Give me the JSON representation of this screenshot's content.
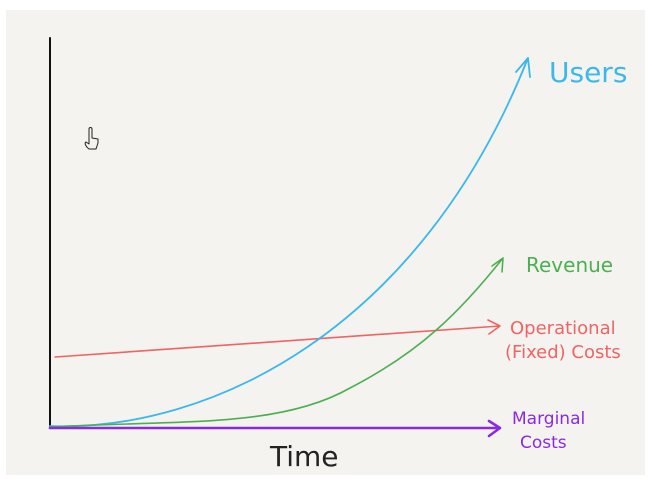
{
  "labels": {
    "users": "Users",
    "revenue": "Revenue",
    "operational_line1": "Operational",
    "operational_line2": "(Fixed) Costs",
    "marginal_line1": "Marginal",
    "marginal_line2": "Costs",
    "x_axis": "Time"
  }
}
